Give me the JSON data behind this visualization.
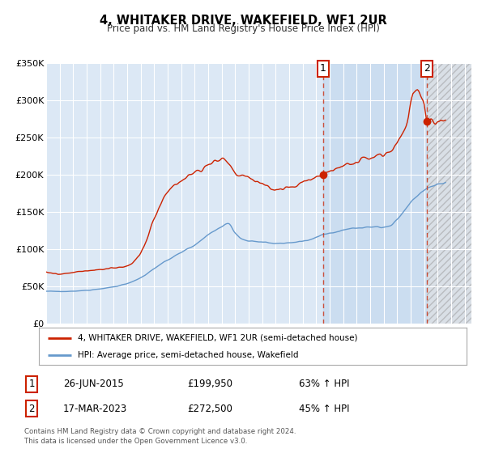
{
  "title": "4, WHITAKER DRIVE, WAKEFIELD, WF1 2UR",
  "subtitle": "Price paid vs. HM Land Registry's House Price Index (HPI)",
  "ylim": [
    0,
    350000
  ],
  "xlim_start": 1995.0,
  "xlim_end": 2026.5,
  "background_color": "#ffffff",
  "plot_bg_color": "#dce8f5",
  "grid_color": "#ffffff",
  "hpi_line_color": "#6699cc",
  "price_line_color": "#cc2200",
  "marker1_date": 2015.5,
  "marker1_price": 199950,
  "marker2_date": 2023.21,
  "marker2_price": 272500,
  "legend_line1": "4, WHITAKER DRIVE, WAKEFIELD, WF1 2UR (semi-detached house)",
  "legend_line2": "HPI: Average price, semi-detached house, Wakefield",
  "footer1": "Contains HM Land Registry data © Crown copyright and database right 2024.",
  "footer2": "This data is licensed under the Open Government Licence v3.0.",
  "shaded_light_start": 2015.5,
  "shaded_light_end": 2023.21,
  "shaded_hatch_start": 2023.21,
  "shaded_hatch_end": 2026.5,
  "ytick_labels": [
    "£0",
    "£50K",
    "£100K",
    "£150K",
    "£200K",
    "£250K",
    "£300K",
    "£350K"
  ],
  "ytick_values": [
    0,
    50000,
    100000,
    150000,
    200000,
    250000,
    300000,
    350000
  ],
  "ann1_date": "26-JUN-2015",
  "ann1_price": "£199,950",
  "ann1_pct": "63% ↑ HPI",
  "ann2_date": "17-MAR-2023",
  "ann2_price": "£272,500",
  "ann2_pct": "45% ↑ HPI"
}
